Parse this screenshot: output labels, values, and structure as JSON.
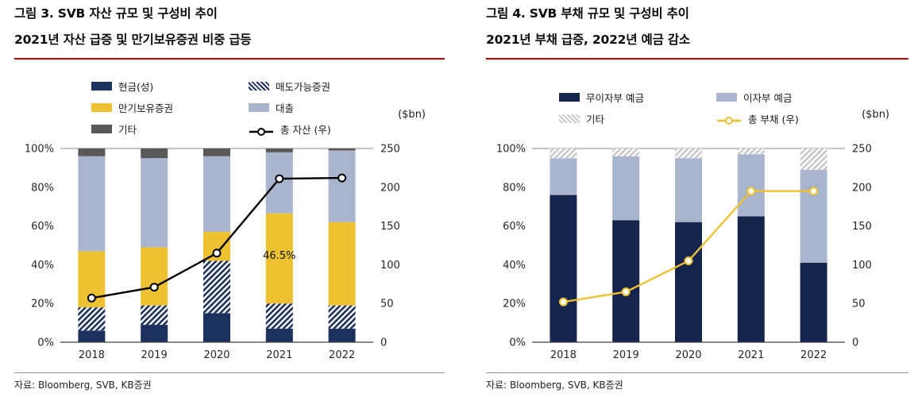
{
  "page": {
    "background": "#ffffff",
    "title_divider_color": "#c00000"
  },
  "panels": [
    {
      "title_line1": "그림 3. SVB 자산 규모 및 구성비 추이",
      "title_line2": "2021년 자산 급증 및 만기보유증권 비중 급등",
      "source": "자료: Bloomberg, SVB, KB증권"
    },
    {
      "title_line1": "그림 4. SVB 부채 규모 및 구성비 추이",
      "title_line2": "2021년 부채 급증, 2022년 예금 감소",
      "source": "자료: Bloomberg, SVB, KB증권"
    }
  ],
  "chart_data": [
    {
      "type": "bar",
      "variant": "stacked-100pct-with-line-overlay",
      "title": "SVB 자산 규모 및 구성비 추이",
      "unit_label": "($bn)",
      "legend_position": "top",
      "grid": false,
      "categories": [
        "2018",
        "2019",
        "2020",
        "2021",
        "2022"
      ],
      "left_axis": {
        "min": 0,
        "max": 100,
        "tick_values": [
          0,
          20,
          40,
          60,
          80,
          100
        ],
        "tick_suffix": "%"
      },
      "right_axis": {
        "min": 0,
        "max": 250,
        "tick_values": [
          0,
          50,
          100,
          150,
          200,
          250
        ]
      },
      "series": [
        {
          "name": "현금(성)",
          "type": "bar",
          "pattern": "solid",
          "color": "#1d315e",
          "values": [
            6,
            9,
            15,
            7,
            7
          ]
        },
        {
          "name": "매도가능증권",
          "type": "bar",
          "pattern": "hatch",
          "color": "#1d315e",
          "values": [
            12,
            10,
            27,
            13,
            12
          ]
        },
        {
          "name": "만기보유증권",
          "type": "bar",
          "pattern": "solid",
          "color": "#eec133",
          "values": [
            29,
            30,
            15,
            46.5,
            43
          ]
        },
        {
          "name": "대출",
          "type": "bar",
          "pattern": "solid",
          "color": "#a9b4cd",
          "values": [
            49,
            46,
            39,
            31.5,
            37
          ]
        },
        {
          "name": "기타",
          "type": "bar",
          "pattern": "solid",
          "color": "#595959",
          "values": [
            4,
            5,
            4,
            2,
            1
          ]
        },
        {
          "name": "총 자산 (우)",
          "type": "line",
          "axis": "right",
          "color": "#000000",
          "values": [
            57,
            71,
            115,
            211,
            212
          ]
        }
      ],
      "annotation": {
        "text": "46.5%",
        "category_index": 3,
        "y_value": 43
      }
    },
    {
      "type": "bar",
      "variant": "stacked-100pct-with-line-overlay",
      "title": "SVB 부채 규모 및 구성비 추이",
      "unit_label": "($bn)",
      "legend_position": "top",
      "grid": false,
      "categories": [
        "2018",
        "2019",
        "2020",
        "2021",
        "2022"
      ],
      "left_axis": {
        "min": 0,
        "max": 100,
        "tick_values": [
          0,
          20,
          40,
          60,
          80,
          100
        ],
        "tick_suffix": "%"
      },
      "right_axis": {
        "min": 0,
        "max": 250,
        "tick_values": [
          0,
          50,
          100,
          150,
          200,
          250
        ]
      },
      "series": [
        {
          "name": "무이자부 예금",
          "type": "bar",
          "pattern": "solid",
          "color": "#16254e",
          "values": [
            76,
            63,
            62,
            65,
            41
          ]
        },
        {
          "name": "이자부 예금",
          "type": "bar",
          "pattern": "solid",
          "color": "#a9b4cd",
          "values": [
            19,
            33,
            33,
            32,
            48
          ]
        },
        {
          "name": "기타",
          "type": "bar",
          "pattern": "hatch",
          "color": "#c9c9c9",
          "values": [
            5,
            4,
            5,
            3,
            11
          ]
        },
        {
          "name": "총 부채 (우)",
          "type": "line",
          "axis": "right",
          "color": "#eec133",
          "values": [
            52,
            65,
            105,
            195,
            195
          ]
        }
      ]
    }
  ]
}
